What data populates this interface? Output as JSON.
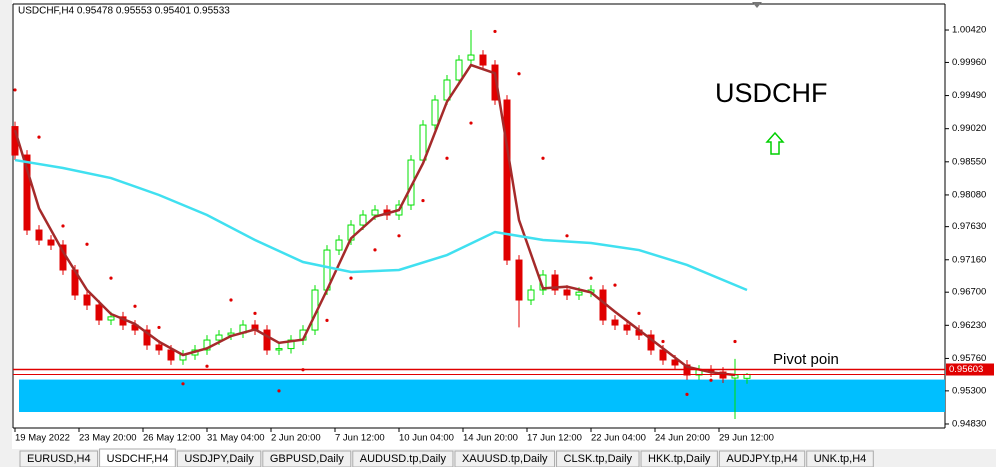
{
  "chart_data": {
    "type": "candlestick",
    "title": "USDCHF",
    "header": "USDCHF,H4  0.95478 0.95553 0.95401 0.95533",
    "annotation": "Pivot poin",
    "xlim": [
      -0.5,
      232.5
    ],
    "ylim": [
      0.94773,
      1.00775
    ],
    "xticks": [
      {
        "value": 0,
        "label": "19 May 2022"
      },
      {
        "value": 16,
        "label": "23 May 20:00"
      },
      {
        "value": 32,
        "label": "26 May 12:00"
      },
      {
        "value": 48,
        "label": "31 May 04:00"
      },
      {
        "value": 64,
        "label": "2 Jun 20:00"
      },
      {
        "value": 80,
        "label": "7 Jun 12:00"
      },
      {
        "value": 96,
        "label": "10 Jun 04:00"
      },
      {
        "value": 112,
        "label": "14 Jun 20:00"
      },
      {
        "value": 128,
        "label": "17 Jun 12:00"
      },
      {
        "value": 144,
        "label": "22 Jun 04:00"
      },
      {
        "value": 160,
        "label": "24 Jun 20:00"
      },
      {
        "value": 176,
        "label": "29 Jun 12:00"
      }
    ],
    "yticks": [
      {
        "value": 1.0042,
        "label": "1.00420"
      },
      {
        "value": 0.9996,
        "label": "0.99960"
      },
      {
        "value": 0.9949,
        "label": "0.99490"
      },
      {
        "value": 0.9902,
        "label": "0.99020"
      },
      {
        "value": 0.9855,
        "label": "0.98550"
      },
      {
        "value": 0.9808,
        "label": "0.98080"
      },
      {
        "value": 0.9763,
        "label": "0.97630"
      },
      {
        "value": 0.9716,
        "label": "0.97160"
      },
      {
        "value": 0.967,
        "label": "0.96700"
      },
      {
        "value": 0.9623,
        "label": "0.96230"
      },
      {
        "value": 0.9576,
        "label": "0.95760"
      },
      {
        "value": 0.953,
        "label": "0.95300"
      },
      {
        "value": 0.9483,
        "label": "0.94830"
      }
    ],
    "up_color": "#00e000",
    "down_color": "#e00000",
    "candles": {
      "x": [
        0,
        3,
        6,
        9,
        12,
        15,
        18,
        21,
        24,
        27,
        30,
        33,
        36,
        39,
        42,
        45,
        48,
        51,
        54,
        57,
        60,
        63,
        66,
        69,
        72,
        75,
        78,
        81,
        84,
        87,
        90,
        93,
        96,
        99,
        102,
        105,
        108,
        111,
        114,
        117,
        120,
        123,
        126,
        129,
        132,
        135,
        138,
        141,
        144,
        147,
        150,
        153,
        156,
        159,
        162,
        165,
        168,
        171,
        174,
        177,
        180,
        183
      ],
      "open": [
        0.9905,
        0.98646,
        0.97582,
        0.9744,
        0.97369,
        0.97015,
        0.9666,
        0.96518,
        0.96305,
        0.9635,
        0.96234,
        0.96163,
        0.95951,
        0.9588,
        0.95738,
        0.95809,
        0.9588,
        0.96021,
        0.96092,
        0.9612,
        0.96234,
        0.96163,
        0.9588,
        0.959,
        0.96021,
        0.96163,
        0.96731,
        0.97298,
        0.9744,
        0.97653,
        0.97795,
        0.97866,
        0.97795,
        0.97937,
        0.98575,
        0.99072,
        0.99427,
        0.99711,
        0.99994,
        1.00065,
        0.99923,
        0.99427,
        0.97156,
        0.96589,
        0.96731,
        0.96944,
        0.96731,
        0.9666,
        0.967,
        0.96731,
        0.96305,
        0.96234,
        0.96163,
        0.96092,
        0.9588,
        0.95738,
        0.95667,
        0.95525,
        0.95596,
        0.95567,
        0.95482,
        0.95478
      ],
      "high": [
        0.9912,
        0.98716,
        0.97652,
        0.9751,
        0.97439,
        0.97085,
        0.9673,
        0.96588,
        0.9642,
        0.9642,
        0.96304,
        0.96233,
        0.96021,
        0.9595,
        0.95879,
        0.9595,
        0.96091,
        0.96162,
        0.9619,
        0.96304,
        0.96304,
        0.96233,
        0.9597,
        0.96091,
        0.96233,
        0.96801,
        0.97368,
        0.9751,
        0.97723,
        0.97865,
        0.97936,
        0.97936,
        0.98007,
        0.98645,
        0.99142,
        0.99497,
        0.99781,
        1.00064,
        1.0042,
        1.00135,
        0.99993,
        0.99497,
        0.97226,
        0.96801,
        0.97014,
        0.97014,
        0.96801,
        0.9677,
        0.96801,
        0.96801,
        0.96375,
        0.96304,
        0.96233,
        0.96162,
        0.9595,
        0.95808,
        0.95737,
        0.95666,
        0.95666,
        0.95637,
        0.95753,
        0.95553
      ],
      "low": [
        0.98576,
        0.97512,
        0.9737,
        0.97299,
        0.96945,
        0.9659,
        0.96448,
        0.96235,
        0.96235,
        0.96164,
        0.96093,
        0.95881,
        0.9581,
        0.95668,
        0.95668,
        0.95739,
        0.9581,
        0.95951,
        0.96022,
        0.9605,
        0.96093,
        0.9581,
        0.9581,
        0.9583,
        0.95951,
        0.96093,
        0.96661,
        0.97228,
        0.9737,
        0.97583,
        0.97725,
        0.97725,
        0.97725,
        0.97867,
        0.98505,
        0.99002,
        0.99357,
        0.99641,
        0.99924,
        0.99853,
        0.99357,
        0.97086,
        0.962,
        0.96519,
        0.96661,
        0.96661,
        0.9659,
        0.9659,
        0.9663,
        0.96235,
        0.96164,
        0.96093,
        0.96022,
        0.9581,
        0.95668,
        0.95597,
        0.95455,
        0.95455,
        0.95497,
        0.95412,
        0.949,
        0.95401
      ],
      "close": [
        0.98646,
        0.97582,
        0.9744,
        0.97369,
        0.97015,
        0.9666,
        0.96518,
        0.96305,
        0.9635,
        0.96234,
        0.96163,
        0.95951,
        0.9588,
        0.95738,
        0.95809,
        0.9588,
        0.96021,
        0.96092,
        0.9612,
        0.96234,
        0.96163,
        0.9588,
        0.959,
        0.96021,
        0.96163,
        0.96731,
        0.97298,
        0.9744,
        0.97653,
        0.97795,
        0.97866,
        0.97795,
        0.97937,
        0.98575,
        0.99072,
        0.99427,
        0.99711,
        0.99994,
        1.00065,
        0.99923,
        0.99427,
        0.97156,
        0.96589,
        0.96731,
        0.96944,
        0.96731,
        0.9666,
        0.967,
        0.96731,
        0.96305,
        0.96234,
        0.96163,
        0.96092,
        0.9588,
        0.95738,
        0.95667,
        0.95525,
        0.95596,
        0.95567,
        0.95482,
        0.95525,
        0.95533
      ]
    },
    "lines": [
      {
        "color": "#a52a2a",
        "x": [
          0,
          6,
          12,
          18,
          24,
          30,
          36,
          42,
          48,
          54,
          60,
          66,
          72,
          78,
          84,
          90,
          96,
          102,
          108,
          114,
          120,
          126,
          132,
          138,
          144,
          150,
          156,
          162,
          168,
          174,
          180
        ],
        "values": [
          0.99,
          0.97889,
          0.97275,
          0.96731,
          0.96391,
          0.96249,
          0.95998,
          0.95809,
          0.95903,
          0.96078,
          0.96172,
          0.95981,
          0.96028,
          0.96731,
          0.97464,
          0.97771,
          0.97866,
          0.98528,
          0.99403,
          0.99923,
          0.99805,
          0.97724,
          0.96755,
          0.96778,
          0.96697,
          0.96423,
          0.96163,
          0.95903,
          0.95643,
          0.95563,
          0.95525
        ]
      },
      {
        "color": "#40e0f0",
        "x": [
          0,
          12,
          24,
          36,
          48,
          60,
          72,
          84,
          96,
          108,
          120,
          132,
          144,
          156,
          168,
          183
        ],
        "values": [
          0.98575,
          0.98462,
          0.9832,
          0.98079,
          0.97795,
          0.9744,
          0.97128,
          0.96986,
          0.97015,
          0.97227,
          0.97554,
          0.9744,
          0.97398,
          0.97298,
          0.97086,
          0.96731
        ]
      }
    ],
    "sar": {
      "color": "#e00000",
      "x": [
        0,
        6,
        12,
        18,
        24,
        30,
        36,
        42,
        48,
        54,
        60,
        66,
        72,
        78,
        84,
        90,
        96,
        102,
        108,
        114,
        120,
        126,
        132,
        138,
        144,
        150,
        156,
        162,
        168,
        174,
        180
      ],
      "values": [
        0.9957,
        0.989,
        0.9764,
        0.9738,
        0.969,
        0.965,
        0.962,
        0.954,
        0.9565,
        0.96589,
        0.964,
        0.953,
        0.956,
        0.963,
        0.969,
        0.973,
        0.975,
        0.98,
        0.986,
        0.991,
        1.004,
        0.998,
        0.986,
        0.975,
        0.969,
        0.968,
        0.964,
        0.96,
        0.9525,
        0.9545,
        0.96
      ]
    },
    "zone": {
      "color": "#00bfff",
      "values": [
        0.95,
        0.9546
      ]
    },
    "pivot": {
      "value": 0.95603,
      "label": "0.95603",
      "color": "#e00000"
    },
    "tabs": [
      "EURUSD,H4",
      "USDCHF,H4",
      "USDJPY,Daily",
      "GBPUSD,Daily",
      "AUDUSD.tp,Daily",
      "XAUUSD.tp,Daily",
      "CLSK.tp,Daily",
      "HKK.tp,Daily",
      "AUDJPY.tp,H4",
      "UNK.tp,H4"
    ],
    "active_tab": 1
  }
}
